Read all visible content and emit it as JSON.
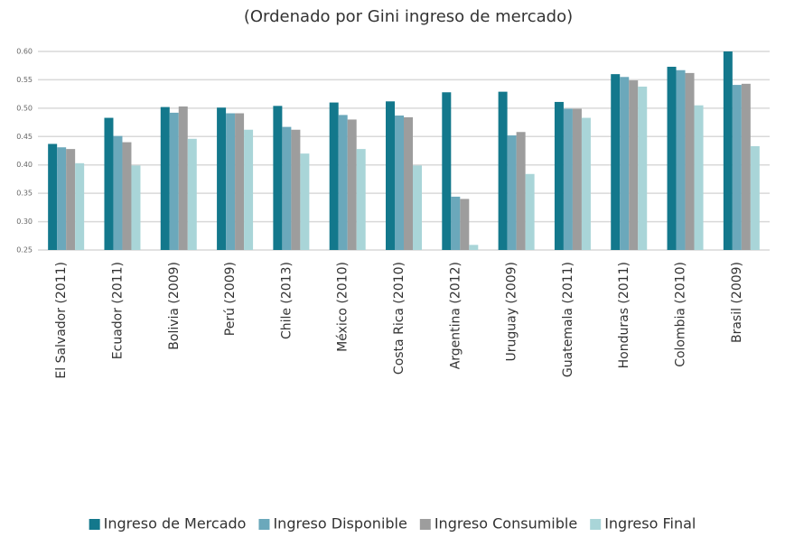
{
  "chart_data": {
    "type": "bar",
    "title": "(Ordenado por Gini ingreso de mercado)",
    "categories": [
      "El Salvador (2011)",
      "Ecuador (2011)",
      "Bolivia (2009)",
      "Perú (2009)",
      "Chile (2013)",
      "México (2010)",
      "Costa Rica (2010)",
      "Argentina (2012)",
      "Uruguay (2009)",
      "Guatemala (2011)",
      "Honduras (2011)",
      "Colombia (2010)",
      "Brasil (2009)"
    ],
    "series": [
      {
        "name": "Ingreso de Mercado",
        "color": "#13788c",
        "values": [
          0.437,
          0.483,
          0.502,
          0.501,
          0.504,
          0.51,
          0.512,
          0.528,
          0.529,
          0.511,
          0.56,
          0.573,
          0.6
        ]
      },
      {
        "name": "Ingreso Disponible",
        "color": "#6ba8bb",
        "values": [
          0.431,
          0.451,
          0.492,
          0.491,
          0.467,
          0.488,
          0.487,
          0.344,
          0.452,
          0.499,
          0.555,
          0.567,
          0.541
        ]
      },
      {
        "name": "Ingreso Consumible",
        "color": "#9d9d9d",
        "values": [
          0.428,
          0.44,
          0.503,
          0.491,
          0.462,
          0.48,
          0.484,
          0.34,
          0.458,
          0.499,
          0.549,
          0.562,
          0.543
        ]
      },
      {
        "name": "Ingreso Final",
        "color": "#a9d5d8",
        "values": [
          0.403,
          0.399,
          0.446,
          0.462,
          0.42,
          0.428,
          0.399,
          0.259,
          0.384,
          0.483,
          0.538,
          0.505,
          0.433
        ]
      }
    ],
    "ylim": [
      0.25,
      0.6
    ],
    "yticks": [
      0.25,
      {
        "value": 0.3,
        "label": "0.30"
      },
      0.35,
      {
        "value": 0.4,
        "label": "0.40"
      },
      0.45,
      {
        "value": 0.5,
        "label": "0.50"
      },
      0.55,
      {
        "value": 0.6,
        "label": "0.60"
      }
    ],
    "grid": true,
    "legend": "bottom"
  }
}
